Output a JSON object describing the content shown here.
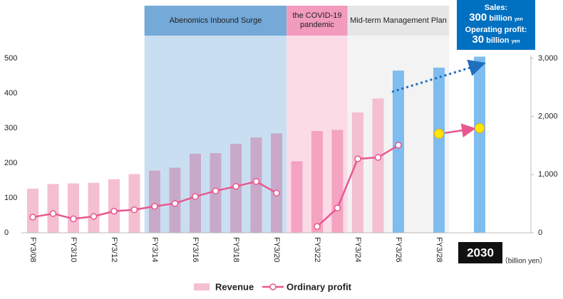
{
  "chart_data": {
    "type": "bar_line",
    "bands": [
      {
        "label": "Abenomics Inbound Surge",
        "from": 6,
        "to": 12,
        "color": "#c9dff1",
        "header_color": "#74a9d8"
      },
      {
        "label": "the COVID-19 pandemic",
        "from": 13,
        "to": 15,
        "color": "#fadbe6",
        "header_color": "#f29bbd"
      },
      {
        "label": "Mid-term Management Plan",
        "from": 16,
        "to": 20,
        "color": "#f3f3f3",
        "header_color": "#e6e6e6"
      }
    ],
    "callout": {
      "sales_label": "Sales:",
      "sales_value": "300",
      "sales_unit": "billion",
      "sales_yen": "yen",
      "profit_label": "Operating profit:",
      "profit_value": "30",
      "profit_unit": "billion",
      "profit_yen": "yen"
    },
    "categories": [
      "FY3/08",
      null,
      "FY3/10",
      null,
      "FY3/12",
      null,
      "FY3/14",
      null,
      "FY3/16",
      null,
      "FY3/18",
      null,
      "FY3/20",
      null,
      "FY3/22",
      null,
      "FY3/24",
      null,
      "FY3/26",
      null,
      "FY3/28",
      null,
      "2030"
    ],
    "series": [
      {
        "name": "Revenue",
        "axis": "y2",
        "color": "#f4bfd0",
        "colors": [
          "#f4bfd0",
          "#f4bfd0",
          "#f4bfd0",
          "#f4bfd0",
          "#f4bfd0",
          "#f4bfd0",
          "#c9a9c9",
          "#c9a9c9",
          "#c9a9c9",
          "#c9a9c9",
          "#c9a9c9",
          "#c9a9c9",
          "#c9a9c9",
          "#f4a3c1",
          "#f4a3c1",
          "#f4a3c1",
          "#f4bfd0",
          "#f4bfd0",
          "#7fbcef",
          "#7fbcef",
          "#7fbcef",
          "#7fbcef",
          "#7fbcef"
        ],
        "values": [
          760,
          840,
          850,
          860,
          920,
          1010,
          1070,
          1120,
          1360,
          1370,
          1530,
          1640,
          1710,
          1230,
          1750,
          1770,
          2070,
          2310,
          2790,
          null,
          2840,
          null,
          3030
        ]
      },
      {
        "name": "Ordinary profit",
        "axis": "y",
        "color": "#e8588f",
        "values": [
          45,
          55,
          40,
          47,
          62,
          66,
          76,
          84,
          104,
          120,
          133,
          147,
          114,
          null,
          18,
          71,
          212,
          216,
          251,
          null,
          null,
          null,
          null
        ]
      },
      {
        "axis": "y",
        "color": "#ffe600",
        "values": [
          null,
          null,
          null,
          null,
          null,
          null,
          null,
          null,
          null,
          null,
          null,
          null,
          null,
          null,
          null,
          null,
          null,
          null,
          null,
          null,
          284,
          null,
          300
        ]
      }
    ],
    "ylim": [
      0,
      500
    ],
    "yticks": [
      0,
      100,
      200,
      300,
      400,
      500
    ],
    "y2lim": [
      0,
      3000
    ],
    "y2ticks": [
      0,
      {
        "value": 1000,
        "label": "1,000"
      },
      {
        "value": 2000,
        "label": "2,000"
      },
      {
        "value": 3000,
        "label": "3,000"
      }
    ],
    "unit_label": "（billion yen）",
    "legend": "bottom"
  }
}
